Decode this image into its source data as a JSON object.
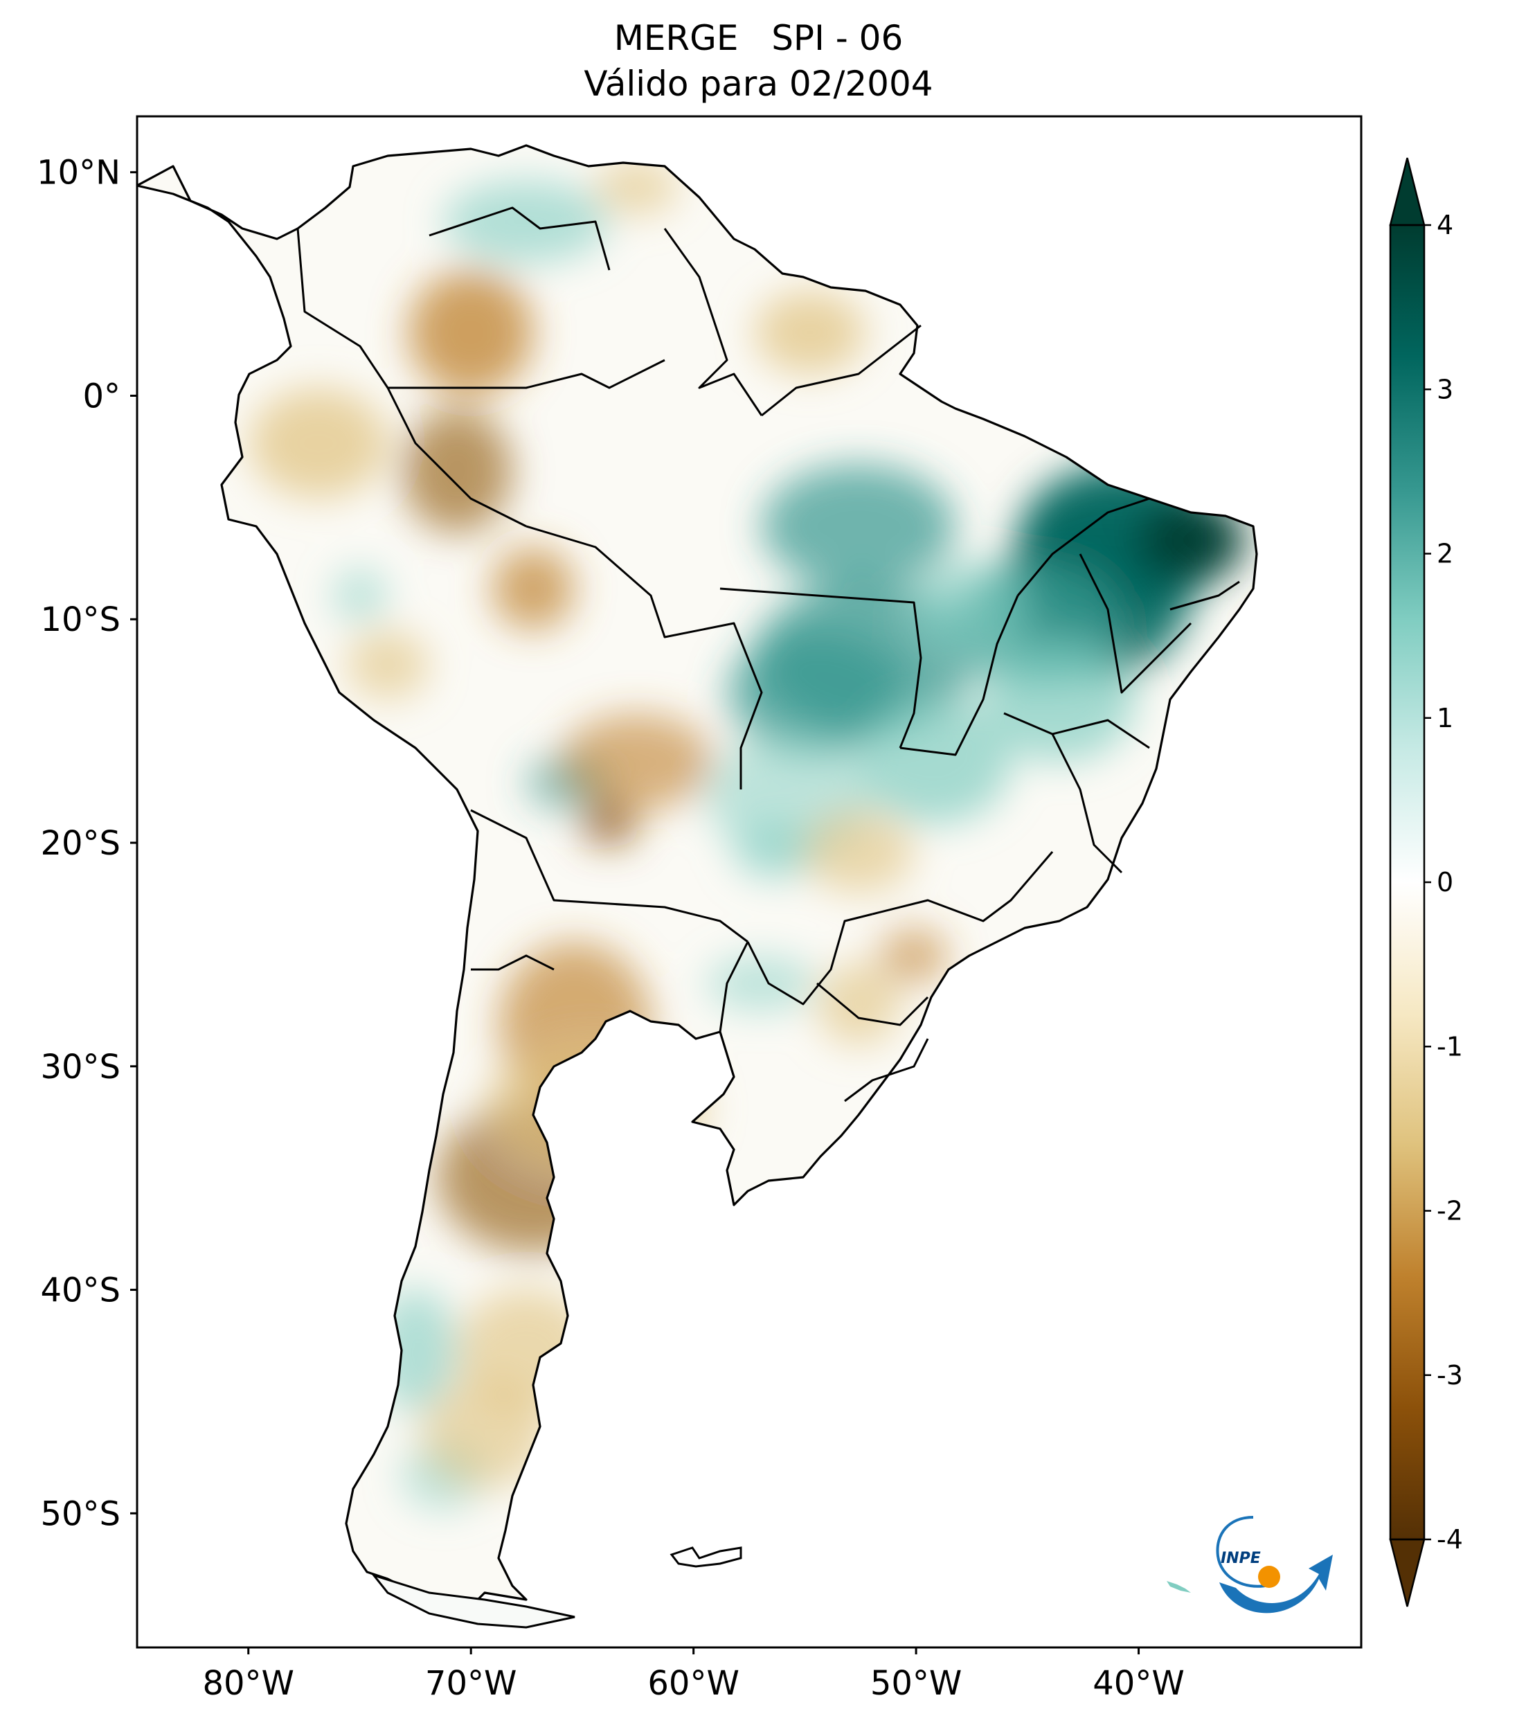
{
  "title": {
    "line1": "MERGE   SPI - 06",
    "line2": "Válido para 02/2004"
  },
  "map": {
    "region": "South America",
    "lat_range": [
      -56,
      12.5
    ],
    "lon_range": [
      -85,
      -30
    ],
    "lat_ticks": [
      "10°N",
      "0°",
      "10°S",
      "20°S",
      "30°S",
      "40°S",
      "50°S"
    ],
    "lat_tick_values": [
      10,
      0,
      -10,
      -20,
      -30,
      -40,
      -50
    ],
    "lon_ticks": [
      "80°W",
      "70°W",
      "60°W",
      "50°W",
      "40°W"
    ],
    "lon_tick_values": [
      -80,
      -70,
      -60,
      -50,
      -40
    ]
  },
  "colorbar": {
    "ticks": [
      "4",
      "3",
      "2",
      "1",
      "0",
      "-1",
      "-2",
      "-3",
      "-4"
    ],
    "tick_values": [
      4,
      3,
      2,
      1,
      0,
      -1,
      -2,
      -3,
      -4
    ],
    "range": [
      -4,
      4
    ],
    "extend": "both",
    "colormap": [
      "#543005",
      "#8c510a",
      "#bf812d",
      "#dfc27d",
      "#f6e8c3",
      "#ffffff",
      "#c7eae5",
      "#80cdc1",
      "#35978f",
      "#01665e",
      "#003c30"
    ]
  },
  "anomalies": {
    "wet": "#01665e",
    "dry": "#8c510a"
  },
  "logo": {
    "text": "INPE",
    "primary_color": "#1a73b8",
    "accent_color": "#f39200"
  }
}
